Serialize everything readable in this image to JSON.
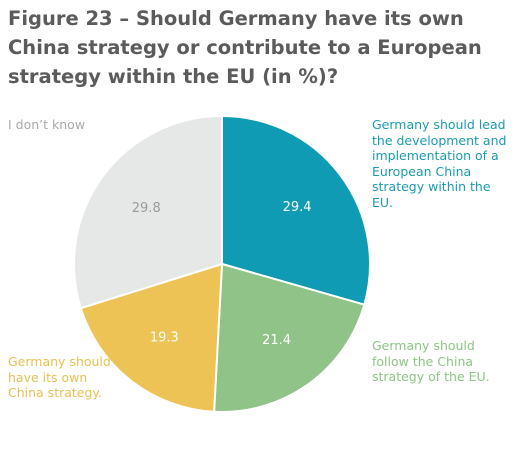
{
  "chart_data": {
    "type": "pie",
    "title": "Figure 23 – Should Germany have its own China strategy or contribute to a European strategy within the EU (in %)?",
    "start_angle_deg": 0,
    "direction": "clockwise",
    "slices": [
      {
        "label": "Germany should lead the development and implementation of a European China strategy within the EU.",
        "value": 29.4,
        "value_label": "29.4",
        "color": "#0f9bb3",
        "label_color": "#1b9bb1",
        "value_text_color": "#ffffff"
      },
      {
        "label": "Germany should follow the China strategy of the EU.",
        "value": 21.4,
        "value_label": "21.4",
        "color": "#8fc387",
        "label_color": "#8ec486",
        "value_text_color": "#ffffff"
      },
      {
        "label": "Germany should have its own China strategy.",
        "value": 19.3,
        "value_label": "19.3",
        "color": "#ecc354",
        "label_color": "#e8c052",
        "value_text_color": "#ffffff"
      },
      {
        "label": "I don’t know",
        "value": 29.8,
        "value_label": "29.8",
        "color": "#e6e8e8",
        "label_color": "#a9a9a9",
        "value_text_color": "#9a9a9a"
      }
    ]
  }
}
